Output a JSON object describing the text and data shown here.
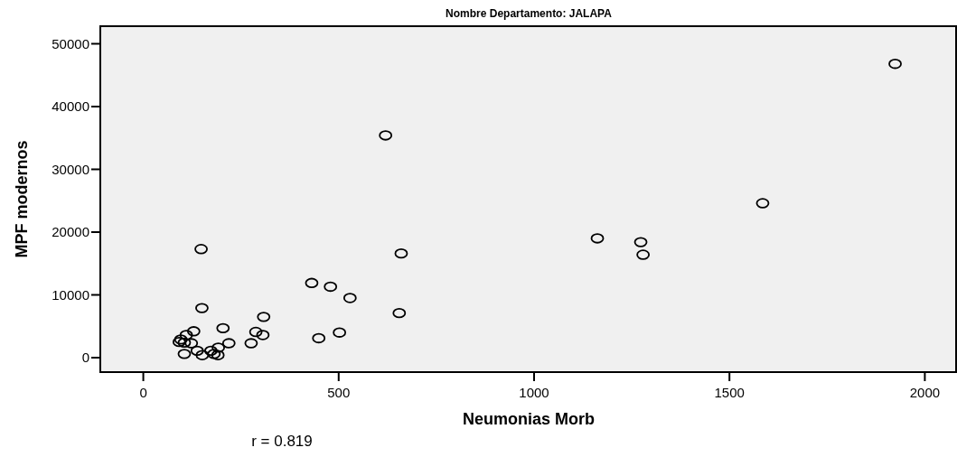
{
  "chart_data": {
    "type": "scatter",
    "title": "Nombre Departamento: JALAPA",
    "xlabel": "Neumonias Morb",
    "ylabel": "MPF modernos",
    "annotations": [
      "r = 0.819"
    ],
    "x": [
      431,
      479,
      529,
      150,
      308,
      204,
      129,
      288,
      306,
      502,
      449,
      110,
      96,
      92,
      105,
      123,
      219,
      276,
      138,
      173,
      192,
      181,
      151,
      191,
      105,
      620,
      148,
      660,
      655,
      1162,
      1273,
      1279,
      1924,
      1585
    ],
    "series": [
      {
        "color": "#000000",
        "values": [
          11900,
          11300,
          9500,
          7900,
          6500,
          4700,
          4200,
          4100,
          3600,
          4000,
          3100,
          3600,
          2900,
          2500,
          2400,
          2300,
          2300,
          2300,
          1100,
          1100,
          1600,
          600,
          400,
          400,
          600,
          35400,
          17300,
          16600,
          7100,
          19000,
          18400,
          16400,
          46800,
          24600
        ]
      }
    ],
    "xlim": [
      -110,
      2080
    ],
    "xticks": [
      0,
      500,
      1000,
      1500,
      2000
    ],
    "ylim": [
      -2300,
      52800
    ],
    "yticks": [
      0,
      10000,
      20000,
      30000,
      40000,
      50000
    ],
    "grid": false,
    "marker": "circle"
  }
}
